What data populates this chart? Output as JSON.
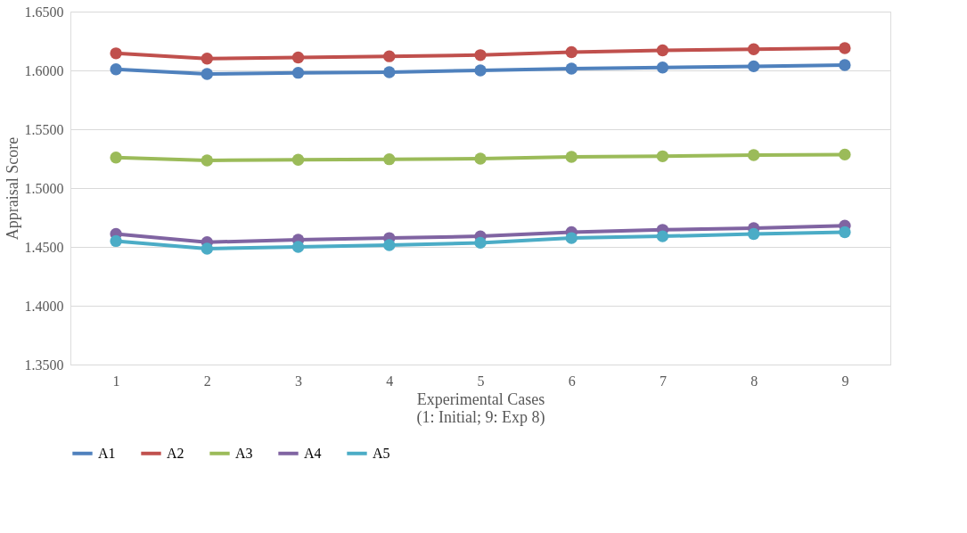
{
  "chart_data": {
    "type": "line",
    "xlabel": "Experimental Cases\n(1: Initial; 9: Exp 8)",
    "ylabel": "Appraisal Score",
    "categories": [
      "1",
      "2",
      "3",
      "4",
      "5",
      "6",
      "7",
      "8",
      "9"
    ],
    "series": [
      {
        "name": "A1",
        "color": "#4f81bd",
        "values": [
          1.601,
          1.597,
          1.598,
          1.5985,
          1.6,
          1.6015,
          1.6025,
          1.6035,
          1.6045
        ]
      },
      {
        "name": "A2",
        "color": "#c0504d",
        "values": [
          1.6145,
          1.61,
          1.611,
          1.612,
          1.613,
          1.6155,
          1.617,
          1.618,
          1.619
        ]
      },
      {
        "name": "A3",
        "color": "#9bbb59",
        "values": [
          1.526,
          1.5235,
          1.524,
          1.5245,
          1.525,
          1.5265,
          1.527,
          1.528,
          1.5285
        ]
      },
      {
        "name": "A4",
        "color": "#8064a2",
        "values": [
          1.461,
          1.454,
          1.456,
          1.4575,
          1.459,
          1.4625,
          1.4645,
          1.466,
          1.468
        ]
      },
      {
        "name": "A5",
        "color": "#4bacc6",
        "values": [
          1.455,
          1.4485,
          1.45,
          1.4515,
          1.4535,
          1.4575,
          1.459,
          1.461,
          1.4625
        ]
      }
    ],
    "ylim": [
      1.35,
      1.65
    ],
    "yticks": [
      {
        "value": 1.35,
        "label": "1.3500"
      },
      {
        "value": 1.4,
        "label": "1.4000"
      },
      {
        "value": 1.45,
        "label": "1.4500"
      },
      {
        "value": 1.5,
        "label": "1.5000"
      },
      {
        "value": 1.55,
        "label": "1.5500"
      },
      {
        "value": 1.6,
        "label": "1.6000"
      },
      {
        "value": 1.65,
        "label": "1.6500"
      }
    ],
    "grid": "y",
    "legend": "bottom",
    "marker": "circle",
    "line_style": "solid"
  }
}
